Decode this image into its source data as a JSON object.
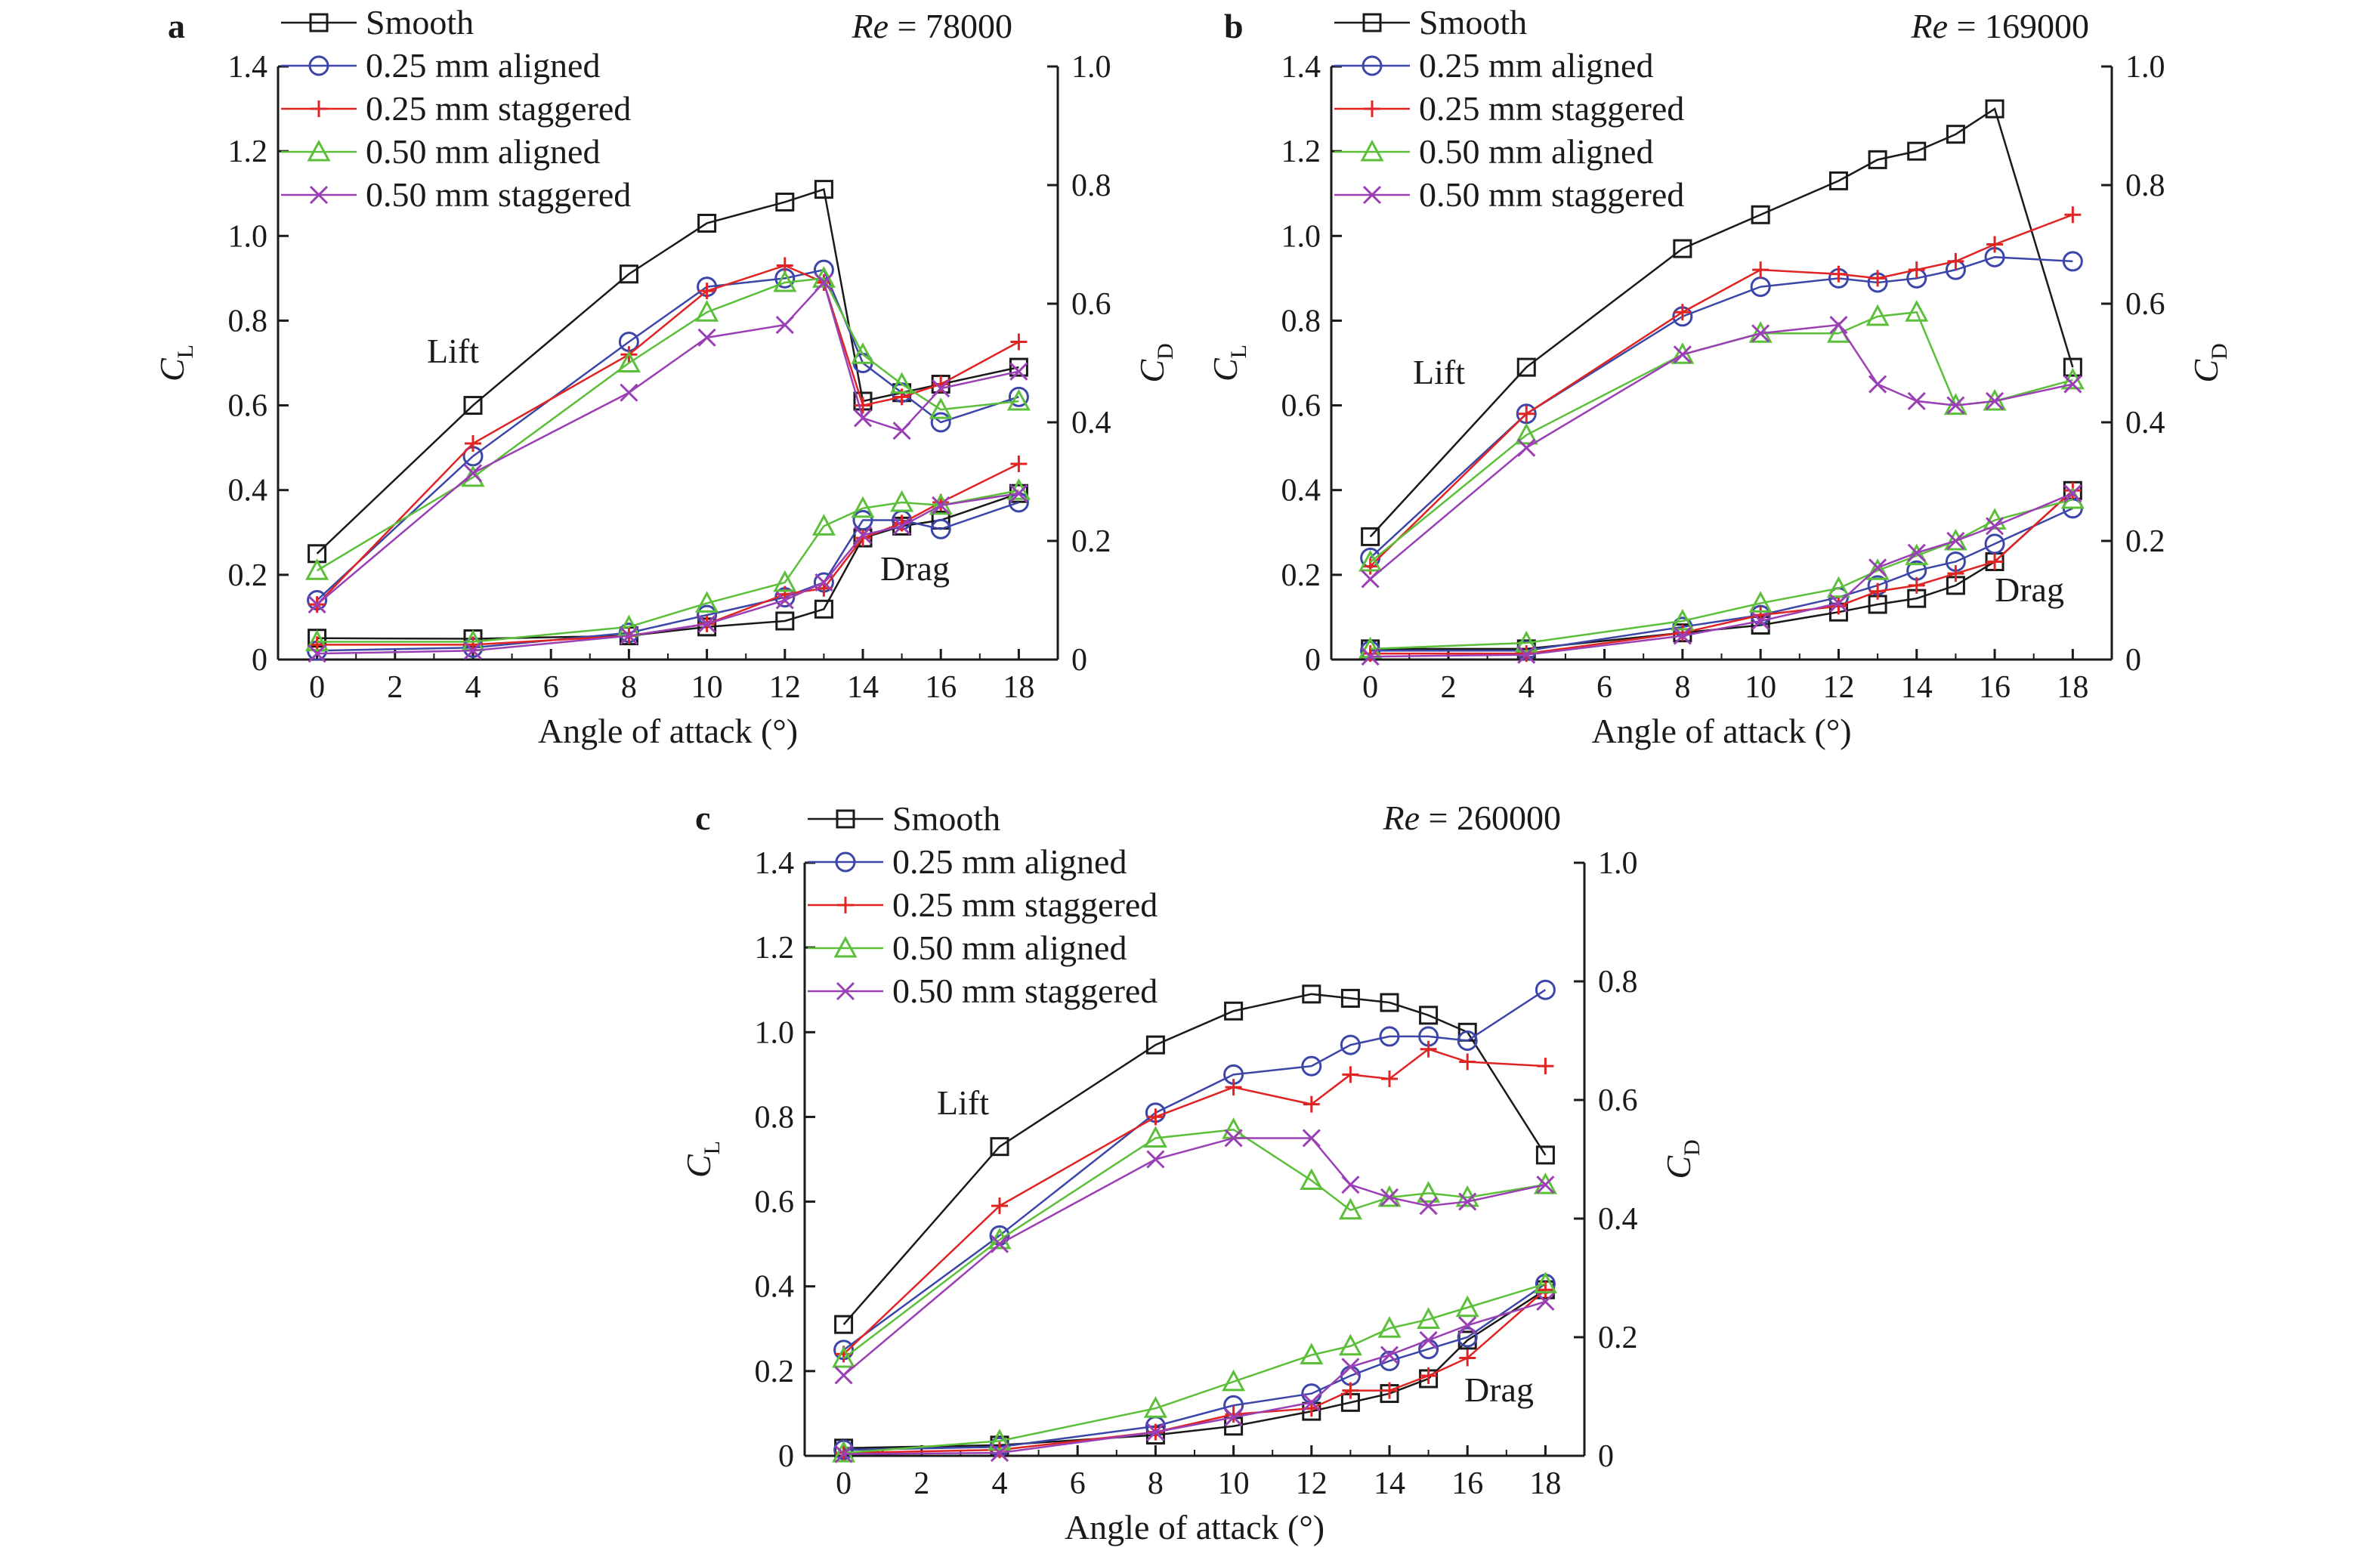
{
  "chart_data": [
    {
      "type": "line",
      "panel": "a",
      "re_label": {
        "prefix": "Re",
        "value": " = 78000"
      },
      "xlabel": "Angle of attack (°)",
      "ylabel_left": "C_L",
      "ylabel_right": "C_D",
      "xlim": [
        -1,
        19
      ],
      "xticks": [
        0,
        2,
        4,
        6,
        8,
        10,
        12,
        14,
        16,
        18
      ],
      "ylim_left": [
        0,
        1.4
      ],
      "yticks_left": [
        "0",
        "0.2",
        "0.4",
        "0.6",
        "0.8",
        "1.0",
        "1.2",
        "1.4"
      ],
      "ylim_right": [
        0,
        1.0
      ],
      "yticks_right": [
        "0",
        "0.2",
        "0.4",
        "0.6",
        "0.8",
        "1.0"
      ],
      "legend_position": "top-left",
      "annotations": [
        "Lift",
        "Drag"
      ],
      "lift": [
        {
          "name": "Smooth",
          "x": [
            0,
            4,
            8,
            10,
            12,
            13,
            14,
            15,
            16,
            18
          ],
          "y": [
            0.25,
            0.6,
            0.91,
            1.03,
            1.08,
            1.11,
            0.61,
            0.63,
            0.65,
            0.69
          ]
        },
        {
          "name": "0.25 mm aligned",
          "x": [
            0,
            4,
            8,
            10,
            12,
            13,
            14,
            15,
            16,
            18
          ],
          "y": [
            0.14,
            0.48,
            0.75,
            0.88,
            0.9,
            0.92,
            0.7,
            0.63,
            0.56,
            0.62
          ]
        },
        {
          "name": "0.25 mm staggered",
          "x": [
            0,
            4,
            8,
            10,
            12,
            13,
            14,
            15,
            16,
            18
          ],
          "y": [
            0.13,
            0.51,
            0.72,
            0.87,
            0.93,
            0.89,
            0.6,
            0.62,
            0.65,
            0.75
          ]
        },
        {
          "name": "0.50 mm aligned",
          "x": [
            0,
            4,
            8,
            10,
            12,
            13,
            14,
            15,
            16,
            18
          ],
          "y": [
            0.21,
            0.43,
            0.7,
            0.82,
            0.89,
            0.9,
            0.72,
            0.65,
            0.59,
            0.61
          ]
        },
        {
          "name": "0.50 mm staggered",
          "x": [
            0,
            4,
            8,
            10,
            12,
            13,
            14,
            15,
            16,
            18
          ],
          "y": [
            0.13,
            0.44,
            0.63,
            0.76,
            0.79,
            0.89,
            0.57,
            0.54,
            0.64,
            0.68
          ]
        }
      ],
      "drag": [
        {
          "name": "Smooth",
          "x": [
            0,
            4,
            8,
            10,
            12,
            13,
            14,
            15,
            16,
            18
          ],
          "y": [
            0.036,
            0.035,
            0.04,
            0.055,
            0.065,
            0.085,
            0.205,
            0.225,
            0.235,
            0.28
          ]
        },
        {
          "name": "0.25 mm aligned",
          "x": [
            0,
            4,
            8,
            10,
            12,
            13,
            14,
            15,
            16,
            18
          ],
          "y": [
            0.015,
            0.02,
            0.045,
            0.075,
            0.105,
            0.13,
            0.235,
            0.235,
            0.22,
            0.265
          ]
        },
        {
          "name": "0.25 mm staggered",
          "x": [
            0,
            4,
            8,
            10,
            12,
            13,
            14,
            15,
            16,
            18
          ],
          "y": [
            0.025,
            0.025,
            0.04,
            0.06,
            0.11,
            0.12,
            0.205,
            0.23,
            0.265,
            0.33
          ]
        },
        {
          "name": "0.50 mm aligned",
          "x": [
            0,
            4,
            8,
            10,
            12,
            13,
            14,
            15,
            16,
            18
          ],
          "y": [
            0.03,
            0.03,
            0.055,
            0.095,
            0.13,
            0.225,
            0.255,
            0.265,
            0.26,
            0.285
          ]
        },
        {
          "name": "0.50 mm staggered",
          "x": [
            0,
            4,
            8,
            10,
            12,
            13,
            14,
            15,
            16,
            18
          ],
          "y": [
            0.01,
            0.015,
            0.04,
            0.06,
            0.1,
            0.13,
            0.21,
            0.225,
            0.26,
            0.28
          ]
        }
      ]
    },
    {
      "type": "line",
      "panel": "b",
      "re_label": {
        "prefix": "Re",
        "value": " = 169000"
      },
      "xlabel": "Angle of attack (°)",
      "ylabel_left": "C_L",
      "ylabel_right": "C_D",
      "xlim": [
        -1,
        19
      ],
      "xticks": [
        0,
        2,
        4,
        6,
        8,
        10,
        12,
        14,
        16,
        18
      ],
      "ylim_left": [
        0,
        1.4
      ],
      "yticks_left": [
        "0",
        "0.2",
        "0.4",
        "0.6",
        "0.8",
        "1.0",
        "1.2",
        "1.4"
      ],
      "ylim_right": [
        0,
        1.0
      ],
      "yticks_right": [
        "0",
        "0.2",
        "0.4",
        "0.6",
        "0.8",
        "1.0"
      ],
      "legend_position": "top-left",
      "annotations": [
        "Lift",
        "Drag"
      ],
      "lift": [
        {
          "name": "Smooth",
          "x": [
            0,
            4,
            8,
            10,
            12,
            13,
            14,
            15,
            16,
            18
          ],
          "y": [
            0.29,
            0.69,
            0.97,
            1.05,
            1.13,
            1.18,
            1.2,
            1.24,
            1.3,
            0.69
          ]
        },
        {
          "name": "0.25 mm aligned",
          "x": [
            0,
            4,
            8,
            10,
            12,
            13,
            14,
            15,
            16,
            18
          ],
          "y": [
            0.24,
            0.58,
            0.81,
            0.88,
            0.9,
            0.89,
            0.9,
            0.92,
            0.95,
            0.94
          ]
        },
        {
          "name": "0.25 mm staggered",
          "x": [
            0,
            4,
            8,
            10,
            12,
            13,
            14,
            15,
            16,
            18
          ],
          "y": [
            0.22,
            0.58,
            0.82,
            0.92,
            0.91,
            0.9,
            0.92,
            0.94,
            0.98,
            1.05
          ]
        },
        {
          "name": "0.50 mm aligned",
          "x": [
            0,
            4,
            8,
            10,
            12,
            13,
            14,
            15,
            16,
            18
          ],
          "y": [
            0.23,
            0.53,
            0.72,
            0.77,
            0.77,
            0.81,
            0.82,
            0.6,
            0.61,
            0.66
          ]
        },
        {
          "name": "0.50 mm staggered",
          "x": [
            0,
            4,
            8,
            10,
            12,
            13,
            14,
            15,
            16,
            18
          ],
          "y": [
            0.19,
            0.5,
            0.72,
            0.77,
            0.79,
            0.65,
            0.61,
            0.6,
            0.61,
            0.65
          ]
        }
      ],
      "drag": [
        {
          "name": "Smooth",
          "x": [
            0,
            4,
            8,
            10,
            12,
            13,
            14,
            15,
            16,
            18
          ],
          "y": [
            0.018,
            0.018,
            0.045,
            0.058,
            0.08,
            0.093,
            0.103,
            0.125,
            0.165,
            0.285
          ]
        },
        {
          "name": "0.25 mm aligned",
          "x": [
            0,
            4,
            8,
            10,
            12,
            13,
            14,
            15,
            16,
            18
          ],
          "y": [
            0.015,
            0.015,
            0.055,
            0.075,
            0.105,
            0.125,
            0.15,
            0.165,
            0.195,
            0.255
          ]
        },
        {
          "name": "0.25 mm staggered",
          "x": [
            0,
            4,
            8,
            10,
            12,
            13,
            14,
            15,
            16,
            18
          ],
          "y": [
            0.01,
            0.01,
            0.045,
            0.075,
            0.09,
            0.115,
            0.125,
            0.145,
            0.165,
            0.285
          ]
        },
        {
          "name": "0.50 mm aligned",
          "x": [
            0,
            4,
            8,
            10,
            12,
            13,
            14,
            15,
            16,
            18
          ],
          "y": [
            0.018,
            0.028,
            0.065,
            0.095,
            0.12,
            0.15,
            0.175,
            0.2,
            0.235,
            0.27
          ]
        },
        {
          "name": "0.50 mm staggered",
          "x": [
            0,
            4,
            8,
            10,
            12,
            13,
            14,
            15,
            16,
            18
          ],
          "y": [
            0.005,
            0.008,
            0.04,
            0.065,
            0.095,
            0.155,
            0.18,
            0.2,
            0.225,
            0.28
          ]
        }
      ]
    },
    {
      "type": "line",
      "panel": "c",
      "re_label": {
        "prefix": "Re",
        "value": " = 260000"
      },
      "xlabel": "Angle of attack (°)",
      "ylabel_left": "C_L",
      "ylabel_right": "C_D",
      "xlim": [
        -1,
        19
      ],
      "xticks": [
        0,
        2,
        4,
        6,
        8,
        10,
        12,
        14,
        16,
        18
      ],
      "ylim_left": [
        0,
        1.4
      ],
      "yticks_left": [
        "0",
        "0.2",
        "0.4",
        "0.6",
        "0.8",
        "1.0",
        "1.2",
        "1.4"
      ],
      "ylim_right": [
        0,
        1.0
      ],
      "yticks_right": [
        "0",
        "0.2",
        "0.4",
        "0.6",
        "0.8",
        "1.0"
      ],
      "legend_position": "top-left",
      "annotations": [
        "Lift",
        "Drag"
      ],
      "lift": [
        {
          "name": "Smooth",
          "x": [
            0,
            4,
            8,
            10,
            12,
            13,
            14,
            15,
            16,
            18
          ],
          "y": [
            0.31,
            0.73,
            0.97,
            1.05,
            1.09,
            1.08,
            1.07,
            1.04,
            1.0,
            0.71
          ]
        },
        {
          "name": "0.25 mm aligned",
          "x": [
            0,
            4,
            8,
            10,
            12,
            13,
            14,
            15,
            16,
            18
          ],
          "y": [
            0.25,
            0.52,
            0.81,
            0.9,
            0.92,
            0.97,
            0.99,
            0.99,
            0.98,
            1.1
          ]
        },
        {
          "name": "0.25 mm staggered",
          "x": [
            0,
            4,
            8,
            10,
            12,
            13,
            14,
            15,
            16,
            18
          ],
          "y": [
            0.24,
            0.59,
            0.8,
            0.87,
            0.83,
            0.9,
            0.89,
            0.96,
            0.93,
            0.92
          ]
        },
        {
          "name": "0.50 mm aligned",
          "x": [
            0,
            4,
            8,
            10,
            12,
            13,
            14,
            15,
            16,
            18
          ],
          "y": [
            0.23,
            0.51,
            0.75,
            0.77,
            0.65,
            0.58,
            0.61,
            0.62,
            0.61,
            0.64
          ]
        },
        {
          "name": "0.50 mm staggered",
          "x": [
            0,
            4,
            8,
            10,
            12,
            13,
            14,
            15,
            16,
            18
          ],
          "y": [
            0.19,
            0.5,
            0.7,
            0.75,
            0.75,
            0.64,
            0.61,
            0.59,
            0.6,
            0.64
          ]
        }
      ],
      "drag": [
        {
          "name": "Smooth",
          "x": [
            0,
            4,
            8,
            10,
            12,
            13,
            14,
            15,
            16,
            18
          ],
          "y": [
            0.013,
            0.018,
            0.035,
            0.05,
            0.075,
            0.09,
            0.105,
            0.13,
            0.195,
            0.28
          ]
        },
        {
          "name": "0.25 mm aligned",
          "x": [
            0,
            4,
            8,
            10,
            12,
            13,
            14,
            15,
            16,
            18
          ],
          "y": [
            0.01,
            0.015,
            0.05,
            0.085,
            0.105,
            0.135,
            0.16,
            0.18,
            0.2,
            0.29
          ]
        },
        {
          "name": "0.25 mm staggered",
          "x": [
            0,
            4,
            8,
            10,
            12,
            13,
            14,
            15,
            16,
            18
          ],
          "y": [
            0.005,
            0.01,
            0.04,
            0.07,
            0.08,
            0.11,
            0.11,
            0.135,
            0.165,
            0.28
          ]
        },
        {
          "name": "0.50 mm aligned",
          "x": [
            0,
            4,
            8,
            10,
            12,
            13,
            14,
            15,
            16,
            18
          ],
          "y": [
            0.005,
            0.025,
            0.08,
            0.125,
            0.17,
            0.185,
            0.215,
            0.23,
            0.25,
            0.29
          ]
        },
        {
          "name": "0.50 mm staggered",
          "x": [
            0,
            4,
            8,
            10,
            12,
            13,
            14,
            15,
            16,
            18
          ],
          "y": [
            0.003,
            0.005,
            0.04,
            0.065,
            0.09,
            0.15,
            0.17,
            0.195,
            0.22,
            0.26
          ]
        }
      ]
    }
  ],
  "series_styles": [
    {
      "name": "Smooth",
      "color": "#1a1a1a",
      "marker": "square"
    },
    {
      "name": "0.25 mm aligned",
      "color": "#3c46a8",
      "marker": "circle"
    },
    {
      "name": "0.25 mm staggered",
      "color": "#e02424",
      "marker": "plus"
    },
    {
      "name": "0.50 mm aligned",
      "color": "#5cbf3a",
      "marker": "triangle"
    },
    {
      "name": "0.50 mm staggered",
      "color": "#9b3fb5",
      "marker": "cross"
    }
  ]
}
